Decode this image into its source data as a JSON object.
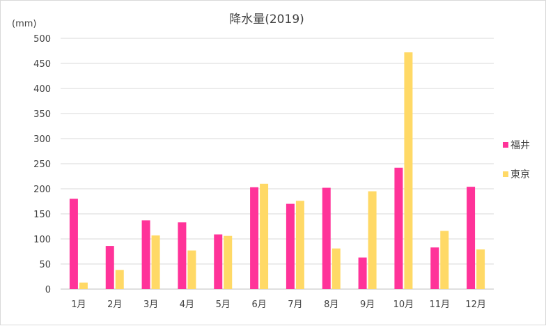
{
  "chart_data": {
    "type": "bar",
    "title": "降水量(2019)",
    "ylabel": "(mm)",
    "xlabel": "",
    "ylim": [
      0,
      500
    ],
    "yticks": [
      0,
      50,
      100,
      150,
      200,
      250,
      300,
      350,
      400,
      450,
      500
    ],
    "grid": true,
    "legend_position": "right",
    "categories": [
      "1月",
      "2月",
      "3月",
      "4月",
      "5月",
      "6月",
      "7月",
      "8月",
      "9月",
      "10月",
      "11月",
      "12月"
    ],
    "series": [
      {
        "name": "福井",
        "color": "#ff3399",
        "values": [
          180,
          86,
          137,
          133,
          109,
          203,
          170,
          202,
          63,
          242,
          83,
          204
        ]
      },
      {
        "name": "東京",
        "color": "#ffd966",
        "values": [
          13,
          38,
          107,
          77,
          106,
          210,
          176,
          81,
          195,
          472,
          116,
          79
        ]
      }
    ]
  }
}
